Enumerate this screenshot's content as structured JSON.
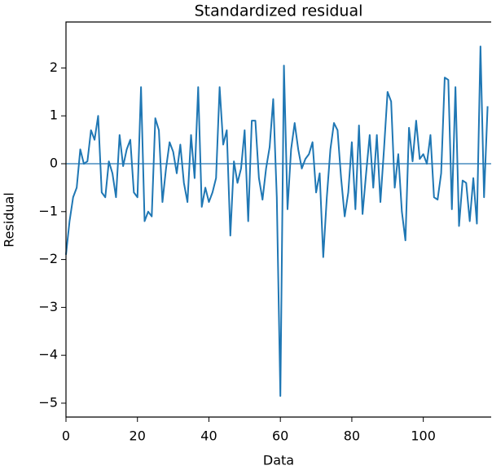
{
  "chart_data": {
    "type": "line",
    "title": "Standardized residual",
    "xlabel": "Data",
    "ylabel": "Residual",
    "x": [
      0,
      1,
      2,
      3,
      4,
      5,
      6,
      7,
      8,
      9,
      10,
      11,
      12,
      13,
      14,
      15,
      16,
      17,
      18,
      19,
      20,
      21,
      22,
      23,
      24,
      25,
      26,
      27,
      28,
      29,
      30,
      31,
      32,
      33,
      34,
      35,
      36,
      37,
      38,
      39,
      40,
      41,
      42,
      43,
      44,
      45,
      46,
      47,
      48,
      49,
      50,
      51,
      52,
      53,
      54,
      55,
      56,
      57,
      58,
      59,
      60,
      61,
      62,
      63,
      64,
      65,
      66,
      67,
      68,
      69,
      70,
      71,
      72,
      73,
      74,
      75,
      76,
      77,
      78,
      79,
      80,
      81,
      82,
      83,
      84,
      85,
      86,
      87,
      88,
      89,
      90,
      91,
      92,
      93,
      94,
      95,
      96,
      97,
      98,
      99,
      100,
      101,
      102,
      103,
      104,
      105,
      106,
      107,
      108,
      109,
      110,
      111,
      112,
      113,
      114,
      115,
      116,
      117,
      118
    ],
    "series": [
      {
        "color": "#1f77b4",
        "values": [
          -1.9,
          -1.2,
          -0.7,
          -0.5,
          0.3,
          0.0,
          0.05,
          0.7,
          0.5,
          1.0,
          -0.6,
          -0.7,
          0.05,
          -0.2,
          -0.7,
          0.6,
          -0.05,
          0.3,
          0.5,
          -0.6,
          -0.7,
          1.6,
          -1.2,
          -1.0,
          -1.1,
          0.95,
          0.7,
          -0.8,
          -0.1,
          0.45,
          0.25,
          -0.2,
          0.4,
          -0.4,
          -0.8,
          0.6,
          -0.3,
          1.6,
          -0.9,
          -0.5,
          -0.8,
          -0.6,
          -0.3,
          1.6,
          0.4,
          0.7,
          -1.5,
          0.05,
          -0.4,
          -0.1,
          0.7,
          -1.2,
          0.9,
          0.9,
          -0.3,
          -0.75,
          -0.1,
          0.35,
          1.35,
          -0.7,
          -4.85,
          2.05,
          -0.95,
          0.3,
          0.85,
          0.3,
          -0.1,
          0.1,
          0.2,
          0.45,
          -0.6,
          -0.2,
          -1.95,
          -0.7,
          0.3,
          0.85,
          0.7,
          -0.3,
          -1.1,
          -0.6,
          0.45,
          -0.95,
          0.8,
          -1.05,
          -0.2,
          0.6,
          -0.5,
          0.6,
          -0.8,
          0.3,
          1.5,
          1.3,
          -0.5,
          0.2,
          -1.0,
          -1.6,
          0.75,
          0.05,
          0.9,
          0.1,
          0.2,
          0.0,
          0.6,
          -0.7,
          -0.75,
          -0.2,
          1.8,
          1.75,
          -0.95,
          1.6,
          -1.3,
          -0.35,
          -0.4,
          -1.2,
          -0.3,
          -1.25,
          2.45,
          -0.7,
          1.2
        ]
      }
    ],
    "hline": {
      "value": 0,
      "color": "#76a9cf"
    },
    "xlim": [
      0,
      119
    ],
    "ylim": [
      -5.29,
      2.96
    ],
    "xticks": [
      0,
      20,
      40,
      60,
      80,
      100
    ],
    "yticks": [
      {
        "value": -5,
        "label": "−5"
      },
      {
        "value": -4,
        "label": "−4"
      },
      {
        "value": -3,
        "label": "−3"
      },
      {
        "value": -2,
        "label": "−2"
      },
      {
        "value": -1,
        "label": "−1"
      },
      0,
      1,
      2
    ]
  }
}
